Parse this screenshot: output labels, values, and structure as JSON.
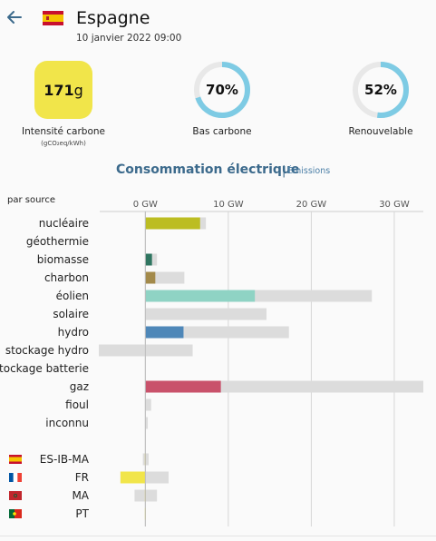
{
  "header": {
    "back_icon": "arrow-left-icon",
    "flag_icon": "flag-spain-icon",
    "zone_name": "Espagne",
    "datetime": "10 janvier 2022 09:00"
  },
  "metrics": {
    "carbon_intensity": {
      "value": "171",
      "unit": "g",
      "label": "Intensité carbone",
      "sublabel": "(gCO₂eq/kWh)",
      "color": "#f1e54a"
    },
    "low_carbon": {
      "value": "70%",
      "fraction": 0.7,
      "label": "Bas carbone"
    },
    "renewable": {
      "value": "52%",
      "fraction": 0.52,
      "label": "Renouvelable"
    },
    "ring_color": "#7ecbe4",
    "ring_track_color": "#e8e8e8"
  },
  "section": {
    "title": "Consommation électrique",
    "separator": "|",
    "alt_link": "Émissions"
  },
  "chart_data": {
    "type": "bar",
    "subtitle": "par source",
    "x_unit": "GW",
    "xlim": [
      -5.5,
      33.5
    ],
    "ticks": [
      0,
      10,
      20,
      30
    ],
    "tick_labels": [
      "0 GW",
      "10 GW",
      "20 GW",
      "30 GW"
    ],
    "sources": [
      {
        "label": "nucléaire",
        "production": 6.6,
        "capacity": 7.3,
        "color": "#bcbd22"
      },
      {
        "label": "géothermie",
        "production": 0,
        "capacity": 0,
        "color": "#777777"
      },
      {
        "label": "biomasse",
        "production": 0.8,
        "capacity": 1.4,
        "color": "#2f7560"
      },
      {
        "label": "charbon",
        "production": 1.2,
        "capacity": 4.7,
        "color": "#a38a4a"
      },
      {
        "label": "éolien",
        "production": 13.2,
        "capacity": 27.3,
        "color": "#8fd3c4"
      },
      {
        "label": "solaire",
        "production": 0,
        "capacity": 14.6,
        "color": "#f4c63d"
      },
      {
        "label": "hydro",
        "production": 4.6,
        "capacity": 17.3,
        "color": "#4e87b8"
      },
      {
        "label": "stockage hydro",
        "production": 0,
        "capacity_range": [
          -5.6,
          5.7
        ],
        "color": "#4e87b8"
      },
      {
        "label": "stockage batterie",
        "production": 0,
        "capacity": 0,
        "color": "#888888"
      },
      {
        "label": "gaz",
        "production": 9.1,
        "capacity": 33.5,
        "color": "#c9526b"
      },
      {
        "label": "fioul",
        "production": 0,
        "capacity": 0.7,
        "color": "#666666"
      },
      {
        "label": "inconnu",
        "production": 0,
        "capacity": 0.3,
        "color": "#999999"
      }
    ],
    "exchanges": [
      {
        "label": "ES-IB-MA",
        "flag": "flag-spain-icon",
        "value": 0,
        "capacity_range": [
          -0.3,
          0.4
        ],
        "color": "#f1e54a"
      },
      {
        "label": "FR",
        "flag": "flag-france-icon",
        "value": -3.0,
        "capacity_range": [
          -3.0,
          2.8
        ],
        "color": "#f1e54a"
      },
      {
        "label": "MA",
        "flag": "flag-morocco-icon",
        "value": 0,
        "capacity_range": [
          -1.3,
          1.4
        ],
        "color": "#f1e54a"
      },
      {
        "label": "PT",
        "flag": "flag-portugal-icon",
        "value": 0,
        "capacity_range": [
          0,
          0
        ],
        "color": "#f1e54a"
      }
    ],
    "grid": true,
    "capacity_color": "#dcdcdc"
  }
}
